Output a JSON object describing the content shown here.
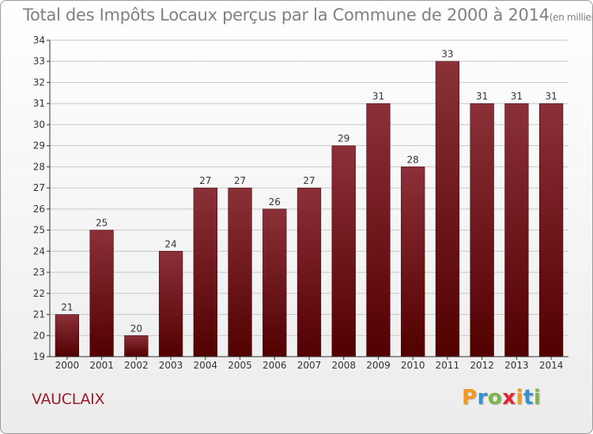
{
  "header": {
    "title": "Total des Impôts Locaux perçus par la Commune de 2000 à 2014",
    "unit": "(en milliers d'€)"
  },
  "commune": "VAUCLAIX",
  "logo": {
    "text": "Proxiti",
    "letter_colors": [
      "#f39a1d",
      "#3a8fd1",
      "#7ab648",
      "#e0262e",
      "#f39a1d",
      "#3a8fd1",
      "#7ab648"
    ]
  },
  "colors": {
    "bar_top": "#8b3038",
    "bar_bottom": "#520000",
    "grid": "#c8c8c8"
  },
  "chart_data": {
    "type": "bar",
    "categories": [
      "2000",
      "2001",
      "2002",
      "2003",
      "2004",
      "2005",
      "2006",
      "2007",
      "2008",
      "2009",
      "2010",
      "2011",
      "2012",
      "2013",
      "2014"
    ],
    "values": [
      21,
      25,
      20,
      24,
      27,
      27,
      26,
      27,
      29,
      31,
      28,
      33,
      31,
      31,
      31
    ],
    "ylim": [
      19,
      34
    ],
    "yticks": [
      19,
      20,
      21,
      22,
      23,
      24,
      25,
      26,
      27,
      28,
      29,
      30,
      31,
      32,
      33,
      34
    ],
    "grid": true,
    "data_labels": true
  }
}
